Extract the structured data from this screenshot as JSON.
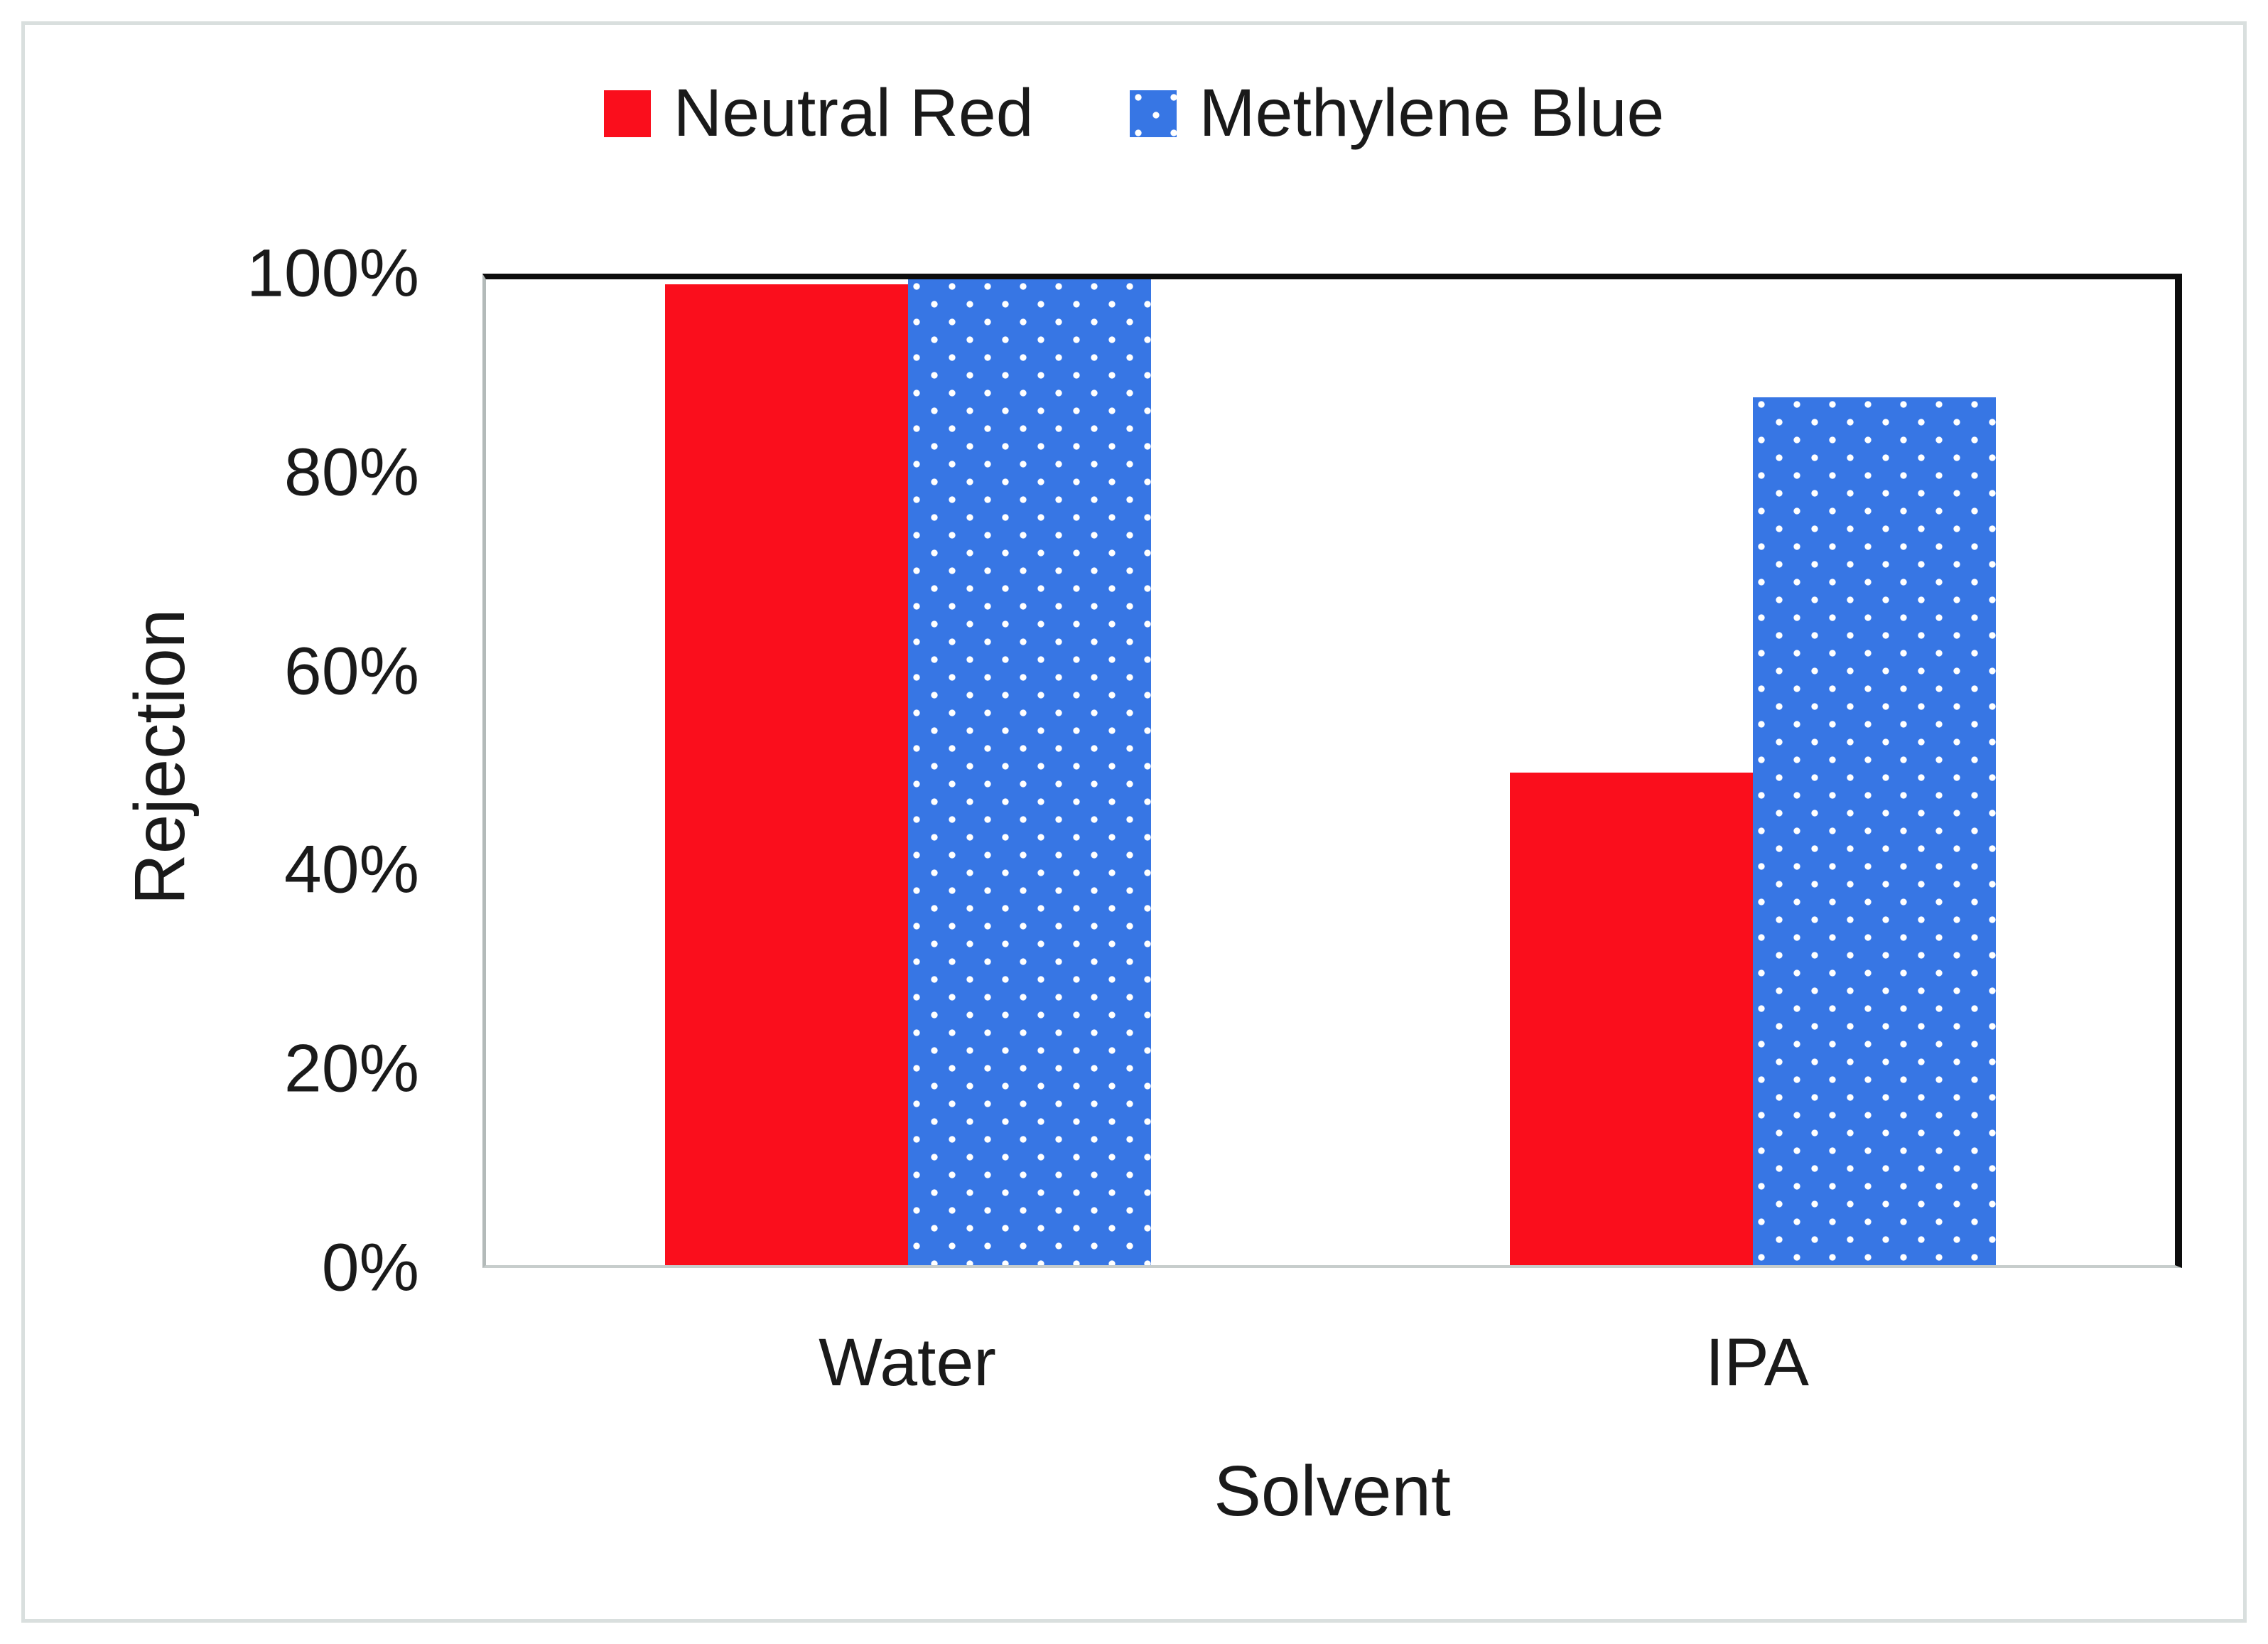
{
  "chart_data": {
    "type": "bar",
    "title": "",
    "categories": [
      "Water",
      "IPA"
    ],
    "series": [
      {
        "name": "Neutral Red",
        "color": "#fa0e1c",
        "fill": "solid",
        "values": [
          99.5,
          50
        ]
      },
      {
        "name": "Methylene Blue",
        "color": "#3776e4",
        "fill": "dotted-white",
        "values": [
          100,
          88
        ]
      }
    ],
    "xlabel": "Solvent",
    "ylabel": "Rejection",
    "ylim": [
      0,
      100
    ],
    "ytick_labels": [
      "100%",
      "80%",
      "60%",
      "40%",
      "20%",
      "0%"
    ],
    "ytick_values": [
      100,
      80,
      60,
      40,
      20,
      0
    ],
    "value_unit": "percent",
    "legend_position": "top-center",
    "grid": false,
    "colors": {
      "axis_dark": "#0d0d0d",
      "axis_light": "#c0c6c5",
      "text": "#1a1a1a",
      "frame": "#d9dfde",
      "pattern_dot": "#ffffff"
    }
  }
}
